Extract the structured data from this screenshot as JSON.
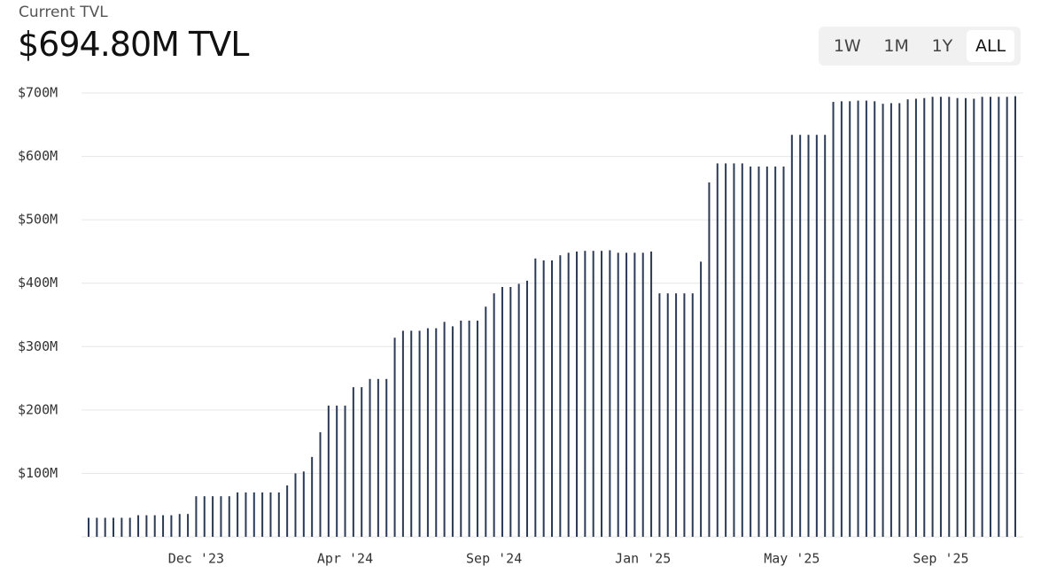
{
  "chart_data": {
    "type": "bar",
    "subtitle": "Current TVL",
    "title": "$694.80M TVL",
    "range_buttons": [
      "1W",
      "1M",
      "1Y",
      "ALL"
    ],
    "selected_range": 3,
    "color": "#2b3a55",
    "grid": true,
    "ylim": [
      0,
      700
    ],
    "yticks": [
      {
        "value": 100,
        "label": "$100M"
      },
      {
        "value": 200,
        "label": "$200M"
      },
      {
        "value": 300,
        "label": "$300M"
      },
      {
        "value": 400,
        "label": "$400M"
      },
      {
        "value": 500,
        "label": "$500M"
      },
      {
        "value": 600,
        "label": "$600M"
      },
      {
        "value": 700,
        "label": "$700M"
      }
    ],
    "categories": [
      null,
      null,
      null,
      null,
      null,
      null,
      null,
      null,
      null,
      null,
      null,
      null,
      null,
      "Dec '23",
      null,
      null,
      null,
      null,
      null,
      null,
      null,
      null,
      null,
      null,
      null,
      null,
      null,
      null,
      null,
      null,
      null,
      "Apr '24",
      null,
      null,
      null,
      null,
      null,
      null,
      null,
      null,
      null,
      null,
      null,
      null,
      null,
      null,
      null,
      null,
      null,
      "Sep '24",
      null,
      null,
      null,
      null,
      null,
      null,
      null,
      null,
      null,
      null,
      null,
      null,
      null,
      null,
      null,
      null,
      null,
      "Jan '25",
      null,
      null,
      null,
      null,
      null,
      null,
      null,
      null,
      null,
      null,
      null,
      null,
      null,
      null,
      null,
      null,
      null,
      "May '25",
      null,
      null,
      null,
      null,
      null,
      null,
      null,
      null,
      null,
      null,
      null,
      null,
      null,
      null,
      null,
      null,
      null,
      "Sep '25",
      null,
      null,
      null,
      null,
      null,
      null,
      null,
      null,
      null
    ],
    "values": [
      30,
      30,
      30,
      30,
      30,
      30,
      34,
      34,
      34,
      34,
      34,
      36,
      36,
      64,
      64,
      64,
      64,
      64,
      70,
      70,
      70,
      70,
      70,
      70,
      81,
      100,
      103,
      126,
      165,
      207,
      207,
      207,
      236,
      236,
      249,
      249,
      249,
      314,
      325,
      325,
      325,
      329,
      329,
      339,
      332,
      341,
      341,
      341,
      363,
      384,
      394,
      394,
      399,
      404,
      439,
      436,
      436,
      444,
      448,
      450,
      451,
      451,
      451,
      452,
      448,
      448,
      448,
      448,
      450,
      384,
      384,
      384,
      384,
      384,
      434,
      559,
      589,
      589,
      589,
      589,
      584,
      584,
      584,
      584,
      584,
      634,
      634,
      634,
      634,
      634,
      686,
      687,
      687,
      688,
      688,
      687,
      683,
      684,
      684,
      690,
      691,
      692,
      694,
      694,
      694,
      692,
      692,
      691,
      694,
      694,
      694,
      694,
      695
    ]
  }
}
